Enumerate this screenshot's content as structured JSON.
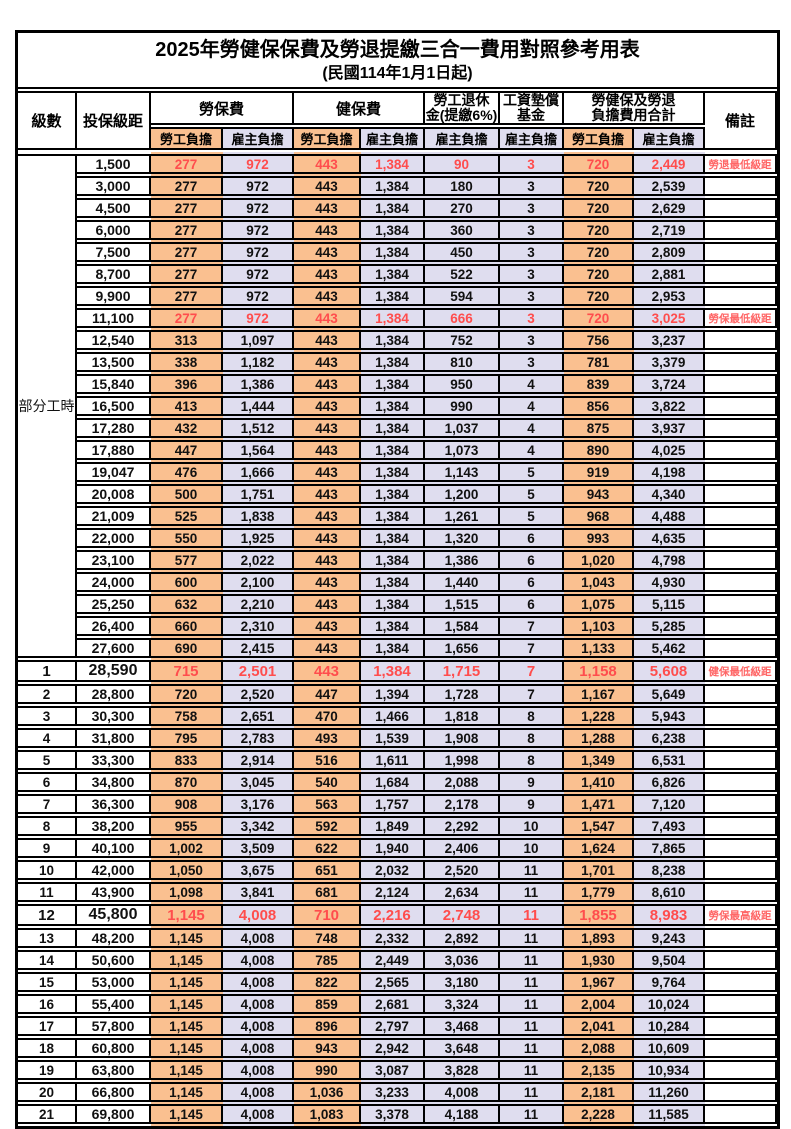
{
  "page": {
    "title": "2025年勞健保保費及勞退提繳三合一費用對照參考用表",
    "subtitle": "(民國114年1月1日起)"
  },
  "colors": {
    "employee_col_bg": "#FAC090",
    "employer_col_bg": "#DFDDEF",
    "highlight_text": "#FF4D4D",
    "remark_text": "#FF6666",
    "border": "#000000"
  },
  "table": {
    "header": {
      "level": "級數",
      "bracket": "投保級距",
      "groups": [
        {
          "label": "勞保費",
          "subs": [
            "勞工負擔",
            "雇主負擔"
          ]
        },
        {
          "label": "健保費",
          "subs": [
            "勞工負擔",
            "雇主負擔"
          ]
        },
        {
          "label": "勞工退休\n金(提繳6%)",
          "subs": [
            "雇主負擔"
          ]
        },
        {
          "label": "工資墊償\n基金",
          "subs": [
            "雇主負擔"
          ]
        },
        {
          "label": "勞健保及勞退\n負擔費用合計",
          "subs": [
            "勞工負擔",
            "雇主負擔"
          ]
        }
      ],
      "remark": "備註"
    },
    "part_time_label": "部分工時",
    "part_time_rowspan": 23,
    "rows": [
      {
        "bracket": "1,500",
        "v": [
          "277",
          "972",
          "443",
          "1,384",
          "90",
          "3",
          "720",
          "2,449"
        ],
        "remark": "勞退最低級距",
        "red": true
      },
      {
        "bracket": "3,000",
        "v": [
          "277",
          "972",
          "443",
          "1,384",
          "180",
          "3",
          "720",
          "2,539"
        ]
      },
      {
        "bracket": "4,500",
        "v": [
          "277",
          "972",
          "443",
          "1,384",
          "270",
          "3",
          "720",
          "2,629"
        ]
      },
      {
        "bracket": "6,000",
        "v": [
          "277",
          "972",
          "443",
          "1,384",
          "360",
          "3",
          "720",
          "2,719"
        ]
      },
      {
        "bracket": "7,500",
        "v": [
          "277",
          "972",
          "443",
          "1,384",
          "450",
          "3",
          "720",
          "2,809"
        ]
      },
      {
        "bracket": "8,700",
        "v": [
          "277",
          "972",
          "443",
          "1,384",
          "522",
          "3",
          "720",
          "2,881"
        ]
      },
      {
        "bracket": "9,900",
        "v": [
          "277",
          "972",
          "443",
          "1,384",
          "594",
          "3",
          "720",
          "2,953"
        ]
      },
      {
        "bracket": "11,100",
        "v": [
          "277",
          "972",
          "443",
          "1,384",
          "666",
          "3",
          "720",
          "3,025"
        ],
        "remark": "勞保最低級距",
        "red": true
      },
      {
        "bracket": "12,540",
        "v": [
          "313",
          "1,097",
          "443",
          "1,384",
          "752",
          "3",
          "756",
          "3,237"
        ]
      },
      {
        "bracket": "13,500",
        "v": [
          "338",
          "1,182",
          "443",
          "1,384",
          "810",
          "3",
          "781",
          "3,379"
        ]
      },
      {
        "bracket": "15,840",
        "v": [
          "396",
          "1,386",
          "443",
          "1,384",
          "950",
          "4",
          "839",
          "3,724"
        ]
      },
      {
        "bracket": "16,500",
        "v": [
          "413",
          "1,444",
          "443",
          "1,384",
          "990",
          "4",
          "856",
          "3,822"
        ]
      },
      {
        "bracket": "17,280",
        "v": [
          "432",
          "1,512",
          "443",
          "1,384",
          "1,037",
          "4",
          "875",
          "3,937"
        ]
      },
      {
        "bracket": "17,880",
        "v": [
          "447",
          "1,564",
          "443",
          "1,384",
          "1,073",
          "4",
          "890",
          "4,025"
        ]
      },
      {
        "bracket": "19,047",
        "v": [
          "476",
          "1,666",
          "443",
          "1,384",
          "1,143",
          "5",
          "919",
          "4,198"
        ]
      },
      {
        "bracket": "20,008",
        "v": [
          "500",
          "1,751",
          "443",
          "1,384",
          "1,200",
          "5",
          "943",
          "4,340"
        ]
      },
      {
        "bracket": "21,009",
        "v": [
          "525",
          "1,838",
          "443",
          "1,384",
          "1,261",
          "5",
          "968",
          "4,488"
        ]
      },
      {
        "bracket": "22,000",
        "v": [
          "550",
          "1,925",
          "443",
          "1,384",
          "1,320",
          "6",
          "993",
          "4,635"
        ]
      },
      {
        "bracket": "23,100",
        "v": [
          "577",
          "2,022",
          "443",
          "1,384",
          "1,386",
          "6",
          "1,020",
          "4,798"
        ]
      },
      {
        "bracket": "24,000",
        "v": [
          "600",
          "2,100",
          "443",
          "1,384",
          "1,440",
          "6",
          "1,043",
          "4,930"
        ]
      },
      {
        "bracket": "25,250",
        "v": [
          "632",
          "2,210",
          "443",
          "1,384",
          "1,515",
          "6",
          "1,075",
          "5,115"
        ]
      },
      {
        "bracket": "26,400",
        "v": [
          "660",
          "2,310",
          "443",
          "1,384",
          "1,584",
          "7",
          "1,103",
          "5,285"
        ]
      },
      {
        "bracket": "27,600",
        "v": [
          "690",
          "2,415",
          "443",
          "1,384",
          "1,656",
          "7",
          "1,133",
          "5,462"
        ]
      },
      {
        "level": "1",
        "bracket": "28,590",
        "v": [
          "715",
          "2,501",
          "443",
          "1,384",
          "1,715",
          "7",
          "1,158",
          "5,608"
        ],
        "remark": "健保最低級距",
        "red": true,
        "emph": true
      },
      {
        "level": "2",
        "bracket": "28,800",
        "v": [
          "720",
          "2,520",
          "447",
          "1,394",
          "1,728",
          "7",
          "1,167",
          "5,649"
        ]
      },
      {
        "level": "3",
        "bracket": "30,300",
        "v": [
          "758",
          "2,651",
          "470",
          "1,466",
          "1,818",
          "8",
          "1,228",
          "5,943"
        ]
      },
      {
        "level": "4",
        "bracket": "31,800",
        "v": [
          "795",
          "2,783",
          "493",
          "1,539",
          "1,908",
          "8",
          "1,288",
          "6,238"
        ]
      },
      {
        "level": "5",
        "bracket": "33,300",
        "v": [
          "833",
          "2,914",
          "516",
          "1,611",
          "1,998",
          "8",
          "1,349",
          "6,531"
        ]
      },
      {
        "level": "6",
        "bracket": "34,800",
        "v": [
          "870",
          "3,045",
          "540",
          "1,684",
          "2,088",
          "9",
          "1,410",
          "6,826"
        ]
      },
      {
        "level": "7",
        "bracket": "36,300",
        "v": [
          "908",
          "3,176",
          "563",
          "1,757",
          "2,178",
          "9",
          "1,471",
          "7,120"
        ]
      },
      {
        "level": "8",
        "bracket": "38,200",
        "v": [
          "955",
          "3,342",
          "592",
          "1,849",
          "2,292",
          "10",
          "1,547",
          "7,493"
        ]
      },
      {
        "level": "9",
        "bracket": "40,100",
        "v": [
          "1,002",
          "3,509",
          "622",
          "1,940",
          "2,406",
          "10",
          "1,624",
          "7,865"
        ]
      },
      {
        "level": "10",
        "bracket": "42,000",
        "v": [
          "1,050",
          "3,675",
          "651",
          "2,032",
          "2,520",
          "11",
          "1,701",
          "8,238"
        ]
      },
      {
        "level": "11",
        "bracket": "43,900",
        "v": [
          "1,098",
          "3,841",
          "681",
          "2,124",
          "2,634",
          "11",
          "1,779",
          "8,610"
        ]
      },
      {
        "level": "12",
        "bracket": "45,800",
        "v": [
          "1,145",
          "4,008",
          "710",
          "2,216",
          "2,748",
          "11",
          "1,855",
          "8,983"
        ],
        "remark": "勞保最高級距",
        "red": true,
        "emph": true
      },
      {
        "level": "13",
        "bracket": "48,200",
        "v": [
          "1,145",
          "4,008",
          "748",
          "2,332",
          "2,892",
          "11",
          "1,893",
          "9,243"
        ]
      },
      {
        "level": "14",
        "bracket": "50,600",
        "v": [
          "1,145",
          "4,008",
          "785",
          "2,449",
          "3,036",
          "11",
          "1,930",
          "9,504"
        ]
      },
      {
        "level": "15",
        "bracket": "53,000",
        "v": [
          "1,145",
          "4,008",
          "822",
          "2,565",
          "3,180",
          "11",
          "1,967",
          "9,764"
        ]
      },
      {
        "level": "16",
        "bracket": "55,400",
        "v": [
          "1,145",
          "4,008",
          "859",
          "2,681",
          "3,324",
          "11",
          "2,004",
          "10,024"
        ]
      },
      {
        "level": "17",
        "bracket": "57,800",
        "v": [
          "1,145",
          "4,008",
          "896",
          "2,797",
          "3,468",
          "11",
          "2,041",
          "10,284"
        ]
      },
      {
        "level": "18",
        "bracket": "60,800",
        "v": [
          "1,145",
          "4,008",
          "943",
          "2,942",
          "3,648",
          "11",
          "2,088",
          "10,609"
        ]
      },
      {
        "level": "19",
        "bracket": "63,800",
        "v": [
          "1,145",
          "4,008",
          "990",
          "3,087",
          "3,828",
          "11",
          "2,135",
          "10,934"
        ]
      },
      {
        "level": "20",
        "bracket": "66,800",
        "v": [
          "1,145",
          "4,008",
          "1,036",
          "3,233",
          "4,008",
          "11",
          "2,181",
          "11,260"
        ]
      },
      {
        "level": "21",
        "bracket": "69,800",
        "v": [
          "1,145",
          "4,008",
          "1,083",
          "3,378",
          "4,188",
          "11",
          "2,228",
          "11,585"
        ]
      }
    ]
  }
}
